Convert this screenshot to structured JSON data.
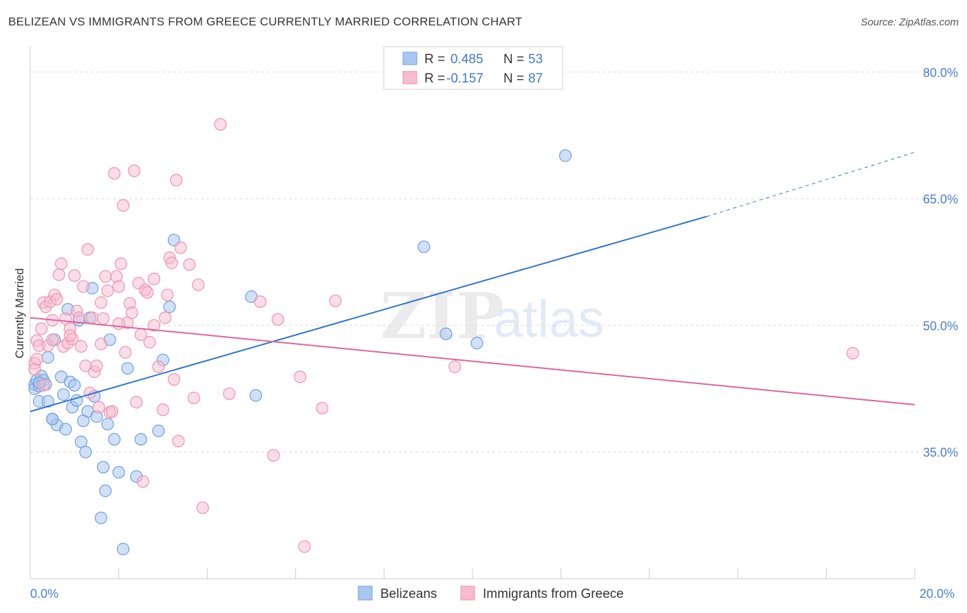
{
  "title": "BELIZEAN VS IMMIGRANTS FROM GREECE CURRENTLY MARRIED CORRELATION CHART",
  "source": "Source: ZipAtlas.com",
  "watermark": {
    "zip": "ZIP",
    "atlas": "atlas"
  },
  "colors": {
    "blue_fill": "#a9c7f0",
    "blue_stroke": "#6f9ee0",
    "blue_line": "#2f73cc",
    "pink_fill": "#f6bccd",
    "pink_stroke": "#ee93b0",
    "pink_line": "#e0649a",
    "tick_text": "#4a7fd1",
    "grid": "#dcdcdc"
  },
  "legend": {
    "row1": {
      "r_label": "R =",
      "r_value": "0.485",
      "n_label": "N =",
      "n_value": "53"
    },
    "row2": {
      "r_label": "R =",
      "r_value": "-0.157",
      "n_label": "N =",
      "n_value": "87"
    }
  },
  "chart_data": {
    "type": "scatter",
    "title": "BELIZEAN VS IMMIGRANTS FROM GREECE CURRENTLY MARRIED CORRELATION CHART",
    "xlabel": "",
    "ylabel": "Currently Married",
    "xlim": [
      0,
      20
    ],
    "ylim": [
      20,
      83
    ],
    "x_tick_labels": [
      "0.0%",
      "20.0%"
    ],
    "y_ticks": [
      35,
      50,
      65,
      80
    ],
    "y_tick_labels": [
      "35.0%",
      "50.0%",
      "65.0%",
      "80.0%"
    ],
    "grid": true,
    "legend_position": "top-center",
    "series": [
      {
        "name": "Belizeans",
        "r": 0.485,
        "n": 53,
        "trend": {
          "x0": 0.0,
          "y0": 39.8,
          "x1": 15.3,
          "y1": 62.9,
          "dashed_to_x": 20.0,
          "dashed_to_y": 70.5
        },
        "points": [
          [
            0.1,
            43.0
          ],
          [
            0.1,
            42.5
          ],
          [
            0.15,
            43.5
          ],
          [
            0.2,
            42.8
          ],
          [
            0.2,
            41.0
          ],
          [
            0.25,
            44.0
          ],
          [
            0.3,
            43.5
          ],
          [
            0.35,
            43.0
          ],
          [
            0.4,
            46.2
          ],
          [
            0.4,
            41.0
          ],
          [
            0.5,
            38.9
          ],
          [
            0.55,
            48.3
          ],
          [
            0.6,
            38.2
          ],
          [
            0.7,
            43.9
          ],
          [
            0.75,
            41.8
          ],
          [
            0.8,
            37.7
          ],
          [
            0.85,
            51.9
          ],
          [
            0.9,
            43.3
          ],
          [
            0.95,
            40.3
          ],
          [
            1.0,
            42.9
          ],
          [
            1.05,
            41.1
          ],
          [
            1.1,
            50.6
          ],
          [
            1.15,
            36.2
          ],
          [
            1.2,
            38.7
          ],
          [
            1.25,
            35.0
          ],
          [
            1.3,
            39.8
          ],
          [
            1.35,
            50.9
          ],
          [
            1.4,
            54.4
          ],
          [
            1.45,
            41.6
          ],
          [
            1.5,
            39.2
          ],
          [
            1.6,
            27.2
          ],
          [
            1.65,
            33.2
          ],
          [
            1.7,
            30.4
          ],
          [
            1.75,
            38.3
          ],
          [
            1.8,
            48.3
          ],
          [
            1.9,
            36.5
          ],
          [
            2.0,
            32.6
          ],
          [
            2.1,
            23.5
          ],
          [
            2.2,
            44.9
          ],
          [
            2.4,
            32.1
          ],
          [
            2.5,
            36.5
          ],
          [
            2.9,
            37.5
          ],
          [
            3.0,
            45.9
          ],
          [
            3.15,
            52.2
          ],
          [
            3.25,
            60.1
          ],
          [
            5.0,
            53.4
          ],
          [
            5.1,
            41.7
          ],
          [
            8.9,
            59.3
          ],
          [
            9.4,
            49.0
          ],
          [
            10.1,
            47.9
          ],
          [
            12.1,
            70.1
          ],
          [
            0.2,
            43.2
          ],
          [
            0.5,
            38.9
          ]
        ]
      },
      {
        "name": "Immigrants from Greece",
        "r": -0.157,
        "n": 87,
        "trend": {
          "x0": 0.0,
          "y0": 50.9,
          "x1": 20.0,
          "y1": 40.6
        },
        "points": [
          [
            0.1,
            45.5
          ],
          [
            0.1,
            44.8
          ],
          [
            0.15,
            48.2
          ],
          [
            0.2,
            47.6
          ],
          [
            0.25,
            49.6
          ],
          [
            0.3,
            42.9
          ],
          [
            0.3,
            52.7
          ],
          [
            0.35,
            52.2
          ],
          [
            0.4,
            47.6
          ],
          [
            0.45,
            52.8
          ],
          [
            0.5,
            48.3
          ],
          [
            0.55,
            53.6
          ],
          [
            0.6,
            53.1
          ],
          [
            0.65,
            56.0
          ],
          [
            0.7,
            57.3
          ],
          [
            0.75,
            47.5
          ],
          [
            0.8,
            50.8
          ],
          [
            0.85,
            47.9
          ],
          [
            0.9,
            49.6
          ],
          [
            0.95,
            48.4
          ],
          [
            1.0,
            55.9
          ],
          [
            1.05,
            51.7
          ],
          [
            1.1,
            50.9
          ],
          [
            1.15,
            47.5
          ],
          [
            1.2,
            54.6
          ],
          [
            1.25,
            45.2
          ],
          [
            1.3,
            59.0
          ],
          [
            1.35,
            42.0
          ],
          [
            1.4,
            50.9
          ],
          [
            1.45,
            44.5
          ],
          [
            1.5,
            45.2
          ],
          [
            1.55,
            40.3
          ],
          [
            1.6,
            52.7
          ],
          [
            1.65,
            50.8
          ],
          [
            1.7,
            55.8
          ],
          [
            1.75,
            54.1
          ],
          [
            1.8,
            39.7
          ],
          [
            1.85,
            39.8
          ],
          [
            1.9,
            68.0
          ],
          [
            1.95,
            55.8
          ],
          [
            2.0,
            54.6
          ],
          [
            2.05,
            57.3
          ],
          [
            2.1,
            64.2
          ],
          [
            2.15,
            46.8
          ],
          [
            2.2,
            50.3
          ],
          [
            2.25,
            52.6
          ],
          [
            2.3,
            51.5
          ],
          [
            2.35,
            68.3
          ],
          [
            2.4,
            40.9
          ],
          [
            2.45,
            55.0
          ],
          [
            2.5,
            48.9
          ],
          [
            2.55,
            31.5
          ],
          [
            2.6,
            54.2
          ],
          [
            2.65,
            53.9
          ],
          [
            2.7,
            48.0
          ],
          [
            2.8,
            55.5
          ],
          [
            2.9,
            45.1
          ],
          [
            3.0,
            40.0
          ],
          [
            3.05,
            50.9
          ],
          [
            3.1,
            53.6
          ],
          [
            3.15,
            58.0
          ],
          [
            3.2,
            57.4
          ],
          [
            3.25,
            43.6
          ],
          [
            3.3,
            67.2
          ],
          [
            3.35,
            36.3
          ],
          [
            3.4,
            59.2
          ],
          [
            3.6,
            57.2
          ],
          [
            3.7,
            41.4
          ],
          [
            3.8,
            54.8
          ],
          [
            3.9,
            28.4
          ],
          [
            4.3,
            73.8
          ],
          [
            4.5,
            41.9
          ],
          [
            5.2,
            52.8
          ],
          [
            5.5,
            34.6
          ],
          [
            5.6,
            50.7
          ],
          [
            6.1,
            43.9
          ],
          [
            6.2,
            23.8
          ],
          [
            6.6,
            40.2
          ],
          [
            6.9,
            52.9
          ],
          [
            9.6,
            45.1
          ],
          [
            18.6,
            46.7
          ],
          [
            0.15,
            46.0
          ],
          [
            0.5,
            50.6
          ],
          [
            0.9,
            48.8
          ],
          [
            1.6,
            47.8
          ],
          [
            2.0,
            50.2
          ],
          [
            2.8,
            50.0
          ]
        ]
      }
    ]
  },
  "bottom_legend": {
    "items": [
      {
        "label": "Belizeans"
      },
      {
        "label": "Immigrants from Greece"
      }
    ]
  }
}
